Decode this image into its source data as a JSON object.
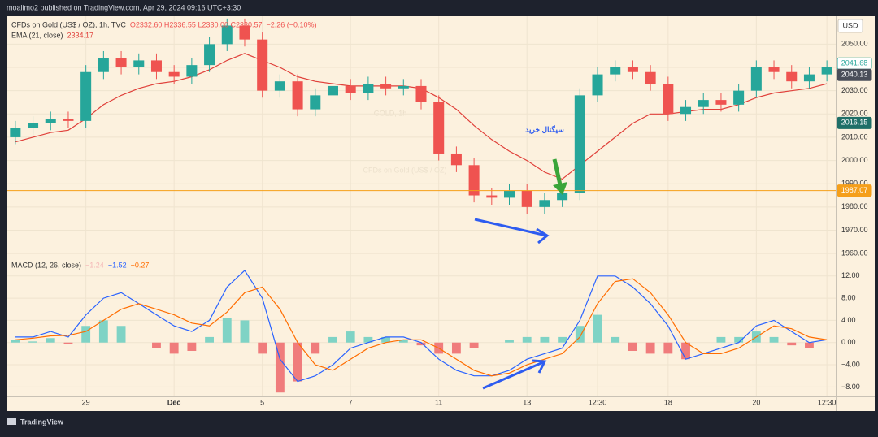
{
  "header": {
    "published": "moalimo2 published on TradingView.com, Apr 29, 2024 09:16 UTC+3:30",
    "currency": "USD"
  },
  "footer": {
    "brand": "TradingView"
  },
  "chart_data": [
    {
      "type": "candlestick",
      "title": "CFDs on Gold (US$ / OZ), 1h, TVC",
      "ohlc_text": "O2332.60 H2336.55 L2330.00 C2330.57",
      "change_text": "−2.26 (−0.10%)",
      "watermark": [
        "GOLD, 1h",
        "CFDs on Gold (US$ / OZ)"
      ],
      "annotation": "سیگنال خرید",
      "categories": [
        null,
        null,
        null,
        null,
        "29",
        null,
        null,
        null,
        null,
        "Dec",
        null,
        null,
        null,
        null,
        "5",
        null,
        null,
        null,
        null,
        "7",
        null,
        null,
        null,
        null,
        "11",
        null,
        null,
        null,
        null,
        "13",
        null,
        null,
        null,
        "12:30",
        null,
        null,
        null,
        "18",
        null,
        null,
        null,
        null,
        "20",
        null,
        null,
        null,
        "12:30"
      ],
      "open": [
        2010,
        2014,
        2016,
        2018,
        2017,
        2038,
        2044,
        2040,
        2043,
        2038,
        2036,
        2041,
        2050,
        2058,
        2052,
        2030,
        2034,
        2022,
        2028,
        2032,
        2029,
        2033,
        2031,
        2032,
        2025,
        2003,
        1998,
        1985,
        1984,
        1987,
        1980,
        1983,
        1986,
        2028,
        2037,
        2040,
        2038,
        2033,
        2020,
        2023,
        2026,
        2024,
        2030,
        2040,
        2038,
        2034,
        2037
      ],
      "high": [
        2017,
        2019,
        2021,
        2021,
        2041,
        2047,
        2047,
        2046,
        2046,
        2041,
        2044,
        2053,
        2061,
        2061,
        2055,
        2037,
        2037,
        2031,
        2035,
        2035,
        2036,
        2036,
        2035,
        2035,
        2028,
        2006,
        2001,
        1988,
        1990,
        1990,
        1986,
        1989,
        2031,
        2040,
        2043,
        2043,
        2041,
        2036,
        2026,
        2029,
        2029,
        2033,
        2043,
        2043,
        2041,
        2040,
        2043
      ],
      "low": [
        2007,
        2011,
        2013,
        2014,
        2014,
        2035,
        2037,
        2037,
        2035,
        2033,
        2033,
        2038,
        2047,
        2049,
        2027,
        2027,
        2019,
        2019,
        2025,
        2026,
        2026,
        2028,
        2028,
        2022,
        2000,
        1995,
        1982,
        1981,
        1981,
        1977,
        1977,
        1980,
        1983,
        2025,
        2034,
        2035,
        2030,
        2017,
        2017,
        2020,
        2021,
        2021,
        2027,
        2035,
        2031,
        2031,
        2034
      ],
      "close": [
        2014,
        2016,
        2018,
        2017,
        2038,
        2044,
        2040,
        2043,
        2038,
        2036,
        2041,
        2050,
        2058,
        2052,
        2030,
        2034,
        2022,
        2028,
        2032,
        2029,
        2033,
        2031,
        2032,
        2025,
        2003,
        1998,
        1985,
        1984,
        1987,
        1980,
        1983,
        1986,
        2028,
        2037,
        2040,
        2038,
        2033,
        2020,
        2023,
        2026,
        2024,
        2030,
        2040,
        2038,
        2034,
        2037,
        2040
      ],
      "up_color": "#26a69a",
      "down_color": "#ef5350",
      "series": [
        {
          "name": "EMA (21, close)",
          "legend_value": "2334.17",
          "color": "#e0403a",
          "values": [
            2008,
            2010,
            2012,
            2013,
            2018,
            2024,
            2028,
            2031,
            2033,
            2034,
            2036,
            2039,
            2043,
            2046,
            2043,
            2040,
            2036,
            2034,
            2033,
            2032,
            2032,
            2032,
            2032,
            2031,
            2027,
            2022,
            2015,
            2009,
            2004,
            2000,
            1995,
            1992,
            1998,
            2004,
            2010,
            2016,
            2020,
            2020,
            2021,
            2022,
            2022,
            2024,
            2027,
            2029,
            2030,
            2031,
            2033
          ]
        }
      ],
      "ylim": [
        1959,
        2062
      ],
      "yticks": [
        {
          "value": 1960,
          "label": "1960.00"
        },
        {
          "value": 1970,
          "label": "1970.00"
        },
        {
          "value": 1980,
          "label": "1980.00"
        },
        {
          "value": 1990,
          "label": "1990.00"
        },
        {
          "value": 2000,
          "label": "2000.00"
        },
        {
          "value": 2010,
          "label": "2010.00"
        },
        {
          "value": 2020,
          "label": "2020.00"
        },
        {
          "value": 2030,
          "label": "2030.00"
        },
        {
          "value": 2040,
          "label": "2040.00"
        },
        {
          "value": 2050,
          "label": "2050.00"
        }
      ],
      "price_labels": [
        {
          "value": 2041.68,
          "label": "2041.68",
          "color": "#26a69a",
          "style": "outline"
        },
        {
          "value": 2040.13,
          "label": "2040.13",
          "color": "#4a4e59",
          "style": "solid"
        },
        {
          "value": 2016.15,
          "label": "2016.15",
          "color": "#1f6f68",
          "style": "solid"
        },
        {
          "value": 1987.07,
          "label": "1987.07",
          "color": "#f59f1a",
          "style": "solid",
          "line": true
        }
      ],
      "grid": true
    },
    {
      "type": "macd",
      "title": "MACD (12, 26, close)",
      "legend_values": [
        {
          "text": "−1.24",
          "color": "#f4b6b6"
        },
        {
          "text": "−1.52",
          "color": "#2962ff"
        },
        {
          "text": "−0.27",
          "color": "#ff6d00"
        }
      ],
      "histogram": {
        "up_color": "#7fd3c5",
        "down_color": "#f07c7c",
        "values": [
          0.5,
          0.2,
          0.8,
          -0.3,
          3,
          4,
          3,
          0,
          -1,
          -2,
          -1.5,
          1,
          4.5,
          4,
          -2,
          -9,
          -7,
          -2,
          1,
          2,
          1,
          1,
          0.5,
          -0.5,
          -2,
          -2,
          -1,
          0,
          0.5,
          1,
          1,
          1,
          3,
          5,
          1,
          -1.5,
          -2,
          -2,
          -3,
          0,
          1,
          1,
          2,
          1,
          -0.5,
          -1,
          0
        ]
      },
      "series": [
        {
          "color": "#2962ff",
          "values": [
            1,
            1,
            2,
            1,
            5,
            8,
            9,
            7,
            5,
            3,
            2,
            4,
            10,
            13,
            8,
            -3,
            -7,
            -6,
            -4,
            -1,
            0,
            1,
            1,
            0,
            -3,
            -5,
            -6,
            -6,
            -5,
            -3,
            -2,
            -1,
            4,
            12,
            12,
            10,
            7,
            3,
            -3,
            -2,
            -1,
            0,
            3,
            4,
            2,
            0,
            0.5
          ]
        },
        {
          "color": "#ff6d00",
          "values": [
            0.5,
            0.8,
            1.2,
            1.3,
            2,
            4,
            6,
            7,
            6,
            5,
            3.5,
            3,
            5.5,
            9,
            10,
            6,
            0,
            -4,
            -5,
            -3,
            -1,
            0,
            0.5,
            0.5,
            -1,
            -3,
            -5,
            -6,
            -5.5,
            -4,
            -3,
            -2,
            1,
            7,
            11,
            11.5,
            9,
            5,
            0,
            -2,
            -2,
            -1,
            1,
            3,
            2.5,
            1,
            0.5
          ]
        }
      ],
      "ylim": [
        -9.7,
        14.6
      ],
      "yticks": [
        {
          "value": -8,
          "label": "−8.00"
        },
        {
          "value": -4,
          "label": "−4.00"
        },
        {
          "value": 0,
          "label": "0.00"
        },
        {
          "value": 4,
          "label": "4.00"
        },
        {
          "value": 8,
          "label": "8.00"
        },
        {
          "value": 12,
          "label": "12.00"
        }
      ],
      "grid": true
    }
  ]
}
